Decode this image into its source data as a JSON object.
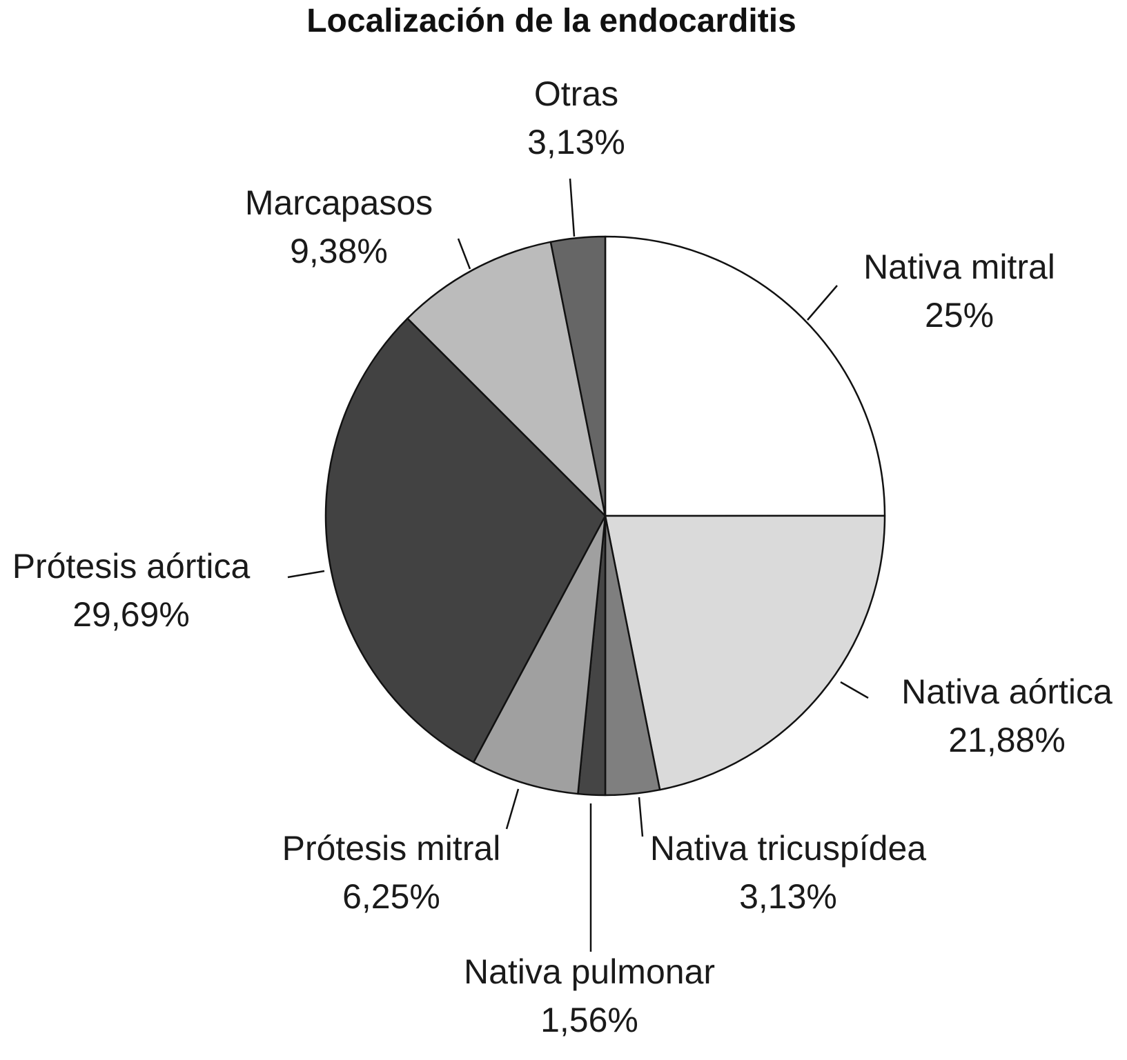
{
  "chart_data": {
    "type": "pie",
    "title": "Localización de la endocarditis",
    "start": "top",
    "direction": "clockwise",
    "slices": [
      {
        "label": "Nativa mitral",
        "value": 25,
        "value_label": "25%",
        "color": "#ffffff"
      },
      {
        "label": "Nativa aórtica",
        "value": 21.88,
        "value_label": "21,88%",
        "color": "#dadada"
      },
      {
        "label": "Nativa tricuspídea",
        "value": 3.13,
        "value_label": "3,13%",
        "color": "#7f7f7f"
      },
      {
        "label": "Nativa pulmonar",
        "value": 1.56,
        "value_label": "1,56%",
        "color": "#454545"
      },
      {
        "label": "Prótesis mitral",
        "value": 6.25,
        "value_label": "6,25%",
        "color": "#a0a0a0"
      },
      {
        "label": "Prótesis aórtica",
        "value": 29.69,
        "value_label": "29,69%",
        "color": "#424242"
      },
      {
        "label": "Marcapasos",
        "value": 9.38,
        "value_label": "9,38%",
        "color": "#bbbbbb"
      },
      {
        "label": "Otras",
        "value": 3.13,
        "value_label": "3,13%",
        "color": "#666666"
      }
    ]
  }
}
